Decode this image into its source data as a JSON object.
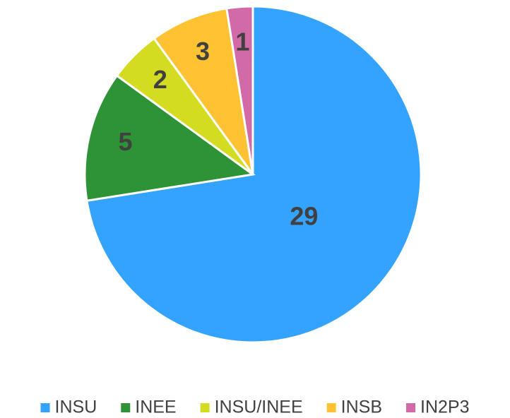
{
  "chart_data": {
    "type": "pie",
    "categories": [
      "INSU",
      "INEE",
      "INSU/INEE",
      "INSB",
      "IN2P3"
    ],
    "values": [
      29,
      5,
      2,
      3,
      1
    ],
    "colors": [
      "#33a3ff",
      "#2e9236",
      "#d4dc22",
      "#ffc233",
      "#d26aa8"
    ],
    "legend": "bottom"
  }
}
